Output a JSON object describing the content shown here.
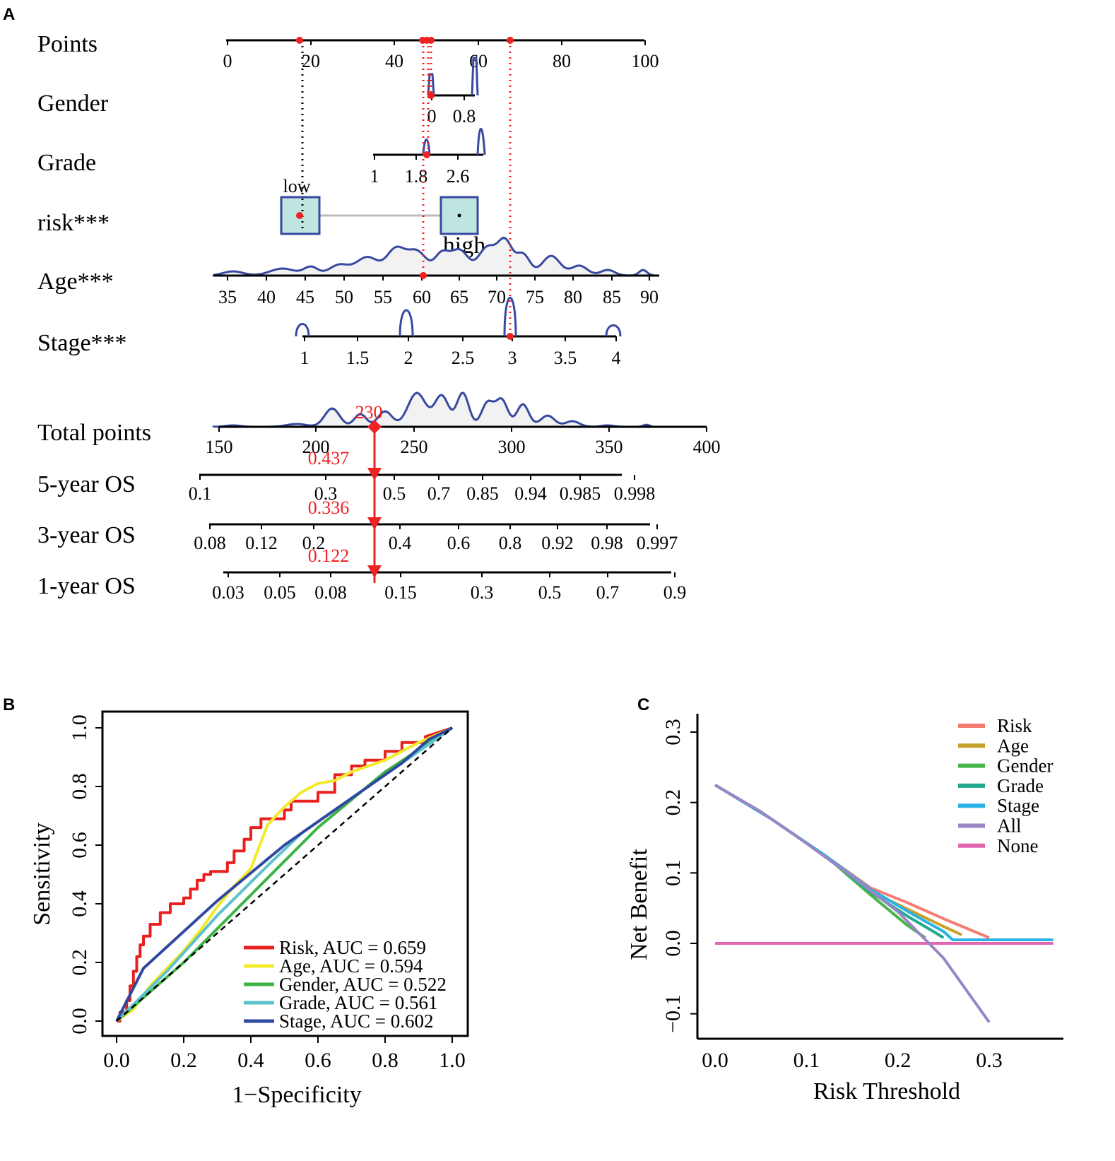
{
  "panel_labels": {
    "a": "A",
    "b": "B",
    "c": "C"
  },
  "colors": {
    "axis": "#000000",
    "density": "#3949a0",
    "density_fill": "#f2f2f2",
    "highlight": "#ee2222",
    "box_fill": "#bfe5e0",
    "box_stroke": "#3949a0",
    "connector": "#bbbbbb"
  },
  "chart_data": [
    {
      "type": "nomogram",
      "panel": "A",
      "rows": [
        {
          "key": "points",
          "label": "Points",
          "ticks": [
            "0",
            "20",
            "40",
            "60",
            "80",
            "100"
          ],
          "tick_values": [
            0,
            20,
            40,
            60,
            80,
            100
          ],
          "axis_range": [
            0,
            100
          ]
        },
        {
          "key": "gender",
          "label": "Gender",
          "ticks": [
            "0",
            "0.8"
          ],
          "tick_values": [
            0,
            0.8
          ],
          "axis_range": [
            -0.05,
            0.85
          ],
          "selected": 0
        },
        {
          "key": "grade",
          "label": "Grade",
          "ticks": [
            "1",
            "1.8",
            "2.6"
          ],
          "tick_values": [
            1,
            1.8,
            2.6
          ],
          "axis_range": [
            1,
            2.95
          ],
          "selected": 2
        },
        {
          "key": "risk",
          "label": "risk***",
          "categories": [
            "low",
            "high"
          ],
          "selected": "low"
        },
        {
          "key": "age",
          "label": "Age***",
          "ticks": [
            "35",
            "40",
            "45",
            "50",
            "55",
            "60",
            "65",
            "70",
            "75",
            "80",
            "85",
            "90"
          ],
          "tick_values": [
            35,
            40,
            45,
            50,
            55,
            60,
            65,
            70,
            75,
            80,
            85,
            90
          ],
          "axis_range": [
            33,
            91
          ],
          "selected": 60
        },
        {
          "key": "stage",
          "label": "Stage***",
          "ticks": [
            "1",
            "1.5",
            "2",
            "2.5",
            "3",
            "3.5",
            "4"
          ],
          "tick_values": [
            1,
            1.5,
            2,
            2.5,
            3,
            3.5,
            4
          ],
          "axis_range": [
            1,
            4
          ],
          "selected": 3
        },
        {
          "key": "total",
          "label": "Total points",
          "ticks": [
            "150",
            "200",
            "250",
            "300",
            "350",
            "400"
          ],
          "tick_values": [
            150,
            200,
            250,
            300,
            350,
            400
          ],
          "axis_range": [
            150,
            400
          ],
          "selected": 230,
          "selected_label": "230"
        },
        {
          "key": "os5",
          "label": "5-year OS",
          "ticks": [
            "0.1",
            "0.3",
            "0.5",
            "0.7",
            "0.85",
            "0.94",
            "0.985",
            "0.998"
          ],
          "predicted": "0.437"
        },
        {
          "key": "os3",
          "label": "3-year OS",
          "ticks": [
            "0.08",
            "0.12",
            "0.2",
            "0.4",
            "0.6",
            "0.8",
            "0.92",
            "0.98",
            "0.997"
          ],
          "predicted": "0.336"
        },
        {
          "key": "os1",
          "label": "1-year OS",
          "ticks": [
            "0.03",
            "0.05",
            "0.08",
            "0.15",
            "0.3",
            "0.5",
            "0.7",
            "0.9"
          ],
          "predicted": "0.122"
        }
      ]
    },
    {
      "type": "line",
      "panel": "B",
      "title": "",
      "xlabel": "1−Specificity",
      "ylabel": "Sensitivity",
      "xlim": [
        0,
        1
      ],
      "ylim": [
        0,
        1
      ],
      "xticks": [
        "0.0",
        "0.2",
        "0.4",
        "0.6",
        "0.8",
        "1.0"
      ],
      "yticks": [
        "0.0",
        "0.2",
        "0.4",
        "0.6",
        "0.8",
        "1.0"
      ],
      "legend_position": "bottom-right",
      "series": [
        {
          "name": "Risk, AUC = 0.659",
          "color": "#e8201e",
          "x": [
            0,
            0.01,
            0.01,
            0.03,
            0.03,
            0.04,
            0.04,
            0.05,
            0.05,
            0.06,
            0.06,
            0.07,
            0.07,
            0.08,
            0.08,
            0.1,
            0.1,
            0.13,
            0.13,
            0.16,
            0.16,
            0.2,
            0.2,
            0.22,
            0.22,
            0.24,
            0.24,
            0.26,
            0.26,
            0.28,
            0.28,
            0.33,
            0.33,
            0.35,
            0.35,
            0.38,
            0.38,
            0.4,
            0.4,
            0.43,
            0.43,
            0.5,
            0.5,
            0.52,
            0.52,
            0.6,
            0.6,
            0.65,
            0.65,
            0.7,
            0.7,
            0.74,
            0.74,
            0.8,
            0.8,
            0.85,
            0.85,
            0.92,
            0.92,
            1
          ],
          "y": [
            0,
            0,
            0.03,
            0.03,
            0.07,
            0.07,
            0.12,
            0.12,
            0.17,
            0.17,
            0.22,
            0.22,
            0.26,
            0.26,
            0.29,
            0.29,
            0.33,
            0.33,
            0.37,
            0.37,
            0.4,
            0.4,
            0.42,
            0.42,
            0.45,
            0.45,
            0.48,
            0.48,
            0.5,
            0.5,
            0.51,
            0.51,
            0.54,
            0.54,
            0.58,
            0.58,
            0.62,
            0.62,
            0.66,
            0.66,
            0.69,
            0.69,
            0.72,
            0.72,
            0.75,
            0.75,
            0.78,
            0.78,
            0.84,
            0.84,
            0.87,
            0.87,
            0.89,
            0.89,
            0.92,
            0.92,
            0.95,
            0.95,
            0.97,
            1
          ]
        },
        {
          "name": "Age, AUC = 0.594",
          "color": "#f2ea2a",
          "x": [
            0,
            0.05,
            0.1,
            0.15,
            0.2,
            0.25,
            0.3,
            0.35,
            0.4,
            0.45,
            0.5,
            0.55,
            0.6,
            0.65,
            0.7,
            0.75,
            0.8,
            0.85,
            0.9,
            1
          ],
          "y": [
            0,
            0.04,
            0.12,
            0.18,
            0.24,
            0.31,
            0.39,
            0.46,
            0.52,
            0.67,
            0.73,
            0.78,
            0.81,
            0.82,
            0.85,
            0.87,
            0.89,
            0.92,
            0.95,
            1
          ]
        },
        {
          "name": "Gender, AUC = 0.522",
          "color": "#3db444",
          "x": [
            0,
            0.2,
            0.4,
            0.6,
            0.8,
            1
          ],
          "y": [
            0,
            0.2,
            0.43,
            0.66,
            0.85,
            1
          ]
        },
        {
          "name": "Grade, AUC = 0.561",
          "color": "#5bc2cc",
          "x": [
            0,
            0.15,
            0.3,
            0.45,
            0.55,
            0.7,
            0.85,
            1
          ],
          "y": [
            0,
            0.17,
            0.36,
            0.53,
            0.64,
            0.76,
            0.88,
            1
          ]
        },
        {
          "name": "Stage, AUC = 0.602",
          "color": "#3048a0",
          "x": [
            0,
            0.08,
            0.3,
            0.5,
            0.7,
            0.85,
            0.93,
            1
          ],
          "y": [
            0,
            0.18,
            0.41,
            0.6,
            0.76,
            0.88,
            0.96,
            1
          ]
        },
        {
          "name": "",
          "color": "#000000",
          "dashed": true,
          "x": [
            0,
            1
          ],
          "y": [
            0,
            1
          ]
        }
      ]
    },
    {
      "type": "line",
      "panel": "C",
      "title": "",
      "xlabel": "Risk Threshold",
      "ylabel": "Net Benefit",
      "xlim": [
        -0.02,
        0.38
      ],
      "ylim": [
        -0.13,
        0.33
      ],
      "xticks": [
        "0.0",
        "0.1",
        "0.2",
        "0.3"
      ],
      "yticks": [
        "−0.1",
        "0.0",
        "0.1",
        "0.2",
        "0.3"
      ],
      "legend_position": "top-right",
      "series": [
        {
          "name": "Risk",
          "color": "#f47c72",
          "x": [
            0,
            0.06,
            0.12,
            0.17,
            0.21,
            0.25,
            0.3
          ],
          "y": [
            0.225,
            0.178,
            0.125,
            0.079,
            0.058,
            0.035,
            0.008
          ]
        },
        {
          "name": "Age",
          "color": "#c6a12c",
          "x": [
            0,
            0.06,
            0.12,
            0.17,
            0.21,
            0.25,
            0.27
          ],
          "y": [
            0.225,
            0.178,
            0.125,
            0.074,
            0.049,
            0.024,
            0.012
          ]
        },
        {
          "name": "Gender",
          "color": "#47b64a",
          "x": [
            0,
            0.06,
            0.12,
            0.17,
            0.21,
            0.23
          ],
          "y": [
            0.225,
            0.178,
            0.125,
            0.069,
            0.026,
            0.008
          ]
        },
        {
          "name": "Grade",
          "color": "#22aa8e",
          "x": [
            0,
            0.06,
            0.12,
            0.17,
            0.21,
            0.24,
            0.25
          ],
          "y": [
            0.225,
            0.178,
            0.125,
            0.073,
            0.039,
            0.016,
            0.008
          ]
        },
        {
          "name": "Stage",
          "color": "#2ab2e6",
          "x": [
            0,
            0.06,
            0.12,
            0.17,
            0.21,
            0.25,
            0.26,
            0.3,
            0.37
          ],
          "y": [
            0.225,
            0.178,
            0.125,
            0.077,
            0.046,
            0.017,
            0.005,
            0.005,
            0.005
          ]
        },
        {
          "name": "All",
          "color": "#9a86c4",
          "x": [
            0,
            0.05,
            0.1,
            0.15,
            0.2,
            0.25,
            0.3
          ],
          "y": [
            0.225,
            0.187,
            0.142,
            0.095,
            0.045,
            -0.021,
            -0.112
          ]
        },
        {
          "name": "None",
          "color": "#e266b0",
          "x": [
            0,
            0.37
          ],
          "y": [
            0,
            0
          ]
        }
      ]
    }
  ]
}
